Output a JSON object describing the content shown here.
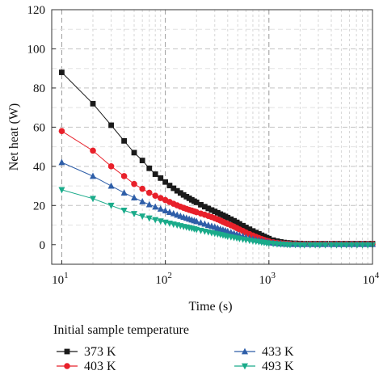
{
  "chart_data": {
    "type": "line",
    "xlabel": "Time (s)",
    "ylabel": "Net heat (W)",
    "xscale": "log",
    "xlim": [
      8,
      10000
    ],
    "ylim": [
      -10,
      120
    ],
    "y_ticks": [
      "0",
      "20",
      "40",
      "60",
      "80",
      "100",
      "120"
    ],
    "x_ticks": [
      {
        "base": "10",
        "exp": "1"
      },
      {
        "base": "10",
        "exp": "2"
      },
      {
        "base": "10",
        "exp": "3"
      },
      {
        "base": "10",
        "exp": "4"
      }
    ],
    "grid": true,
    "legend_title": "Initial sample temperature",
    "legend_position": "bottom",
    "x": [
      10,
      20,
      30,
      40,
      50,
      60,
      70,
      80,
      90,
      100,
      110,
      120,
      130,
      140,
      150,
      160,
      170,
      180,
      190,
      200,
      220,
      240,
      260,
      280,
      300,
      320,
      340,
      360,
      380,
      400,
      430,
      460,
      490,
      520,
      560,
      600,
      650,
      700,
      750,
      800,
      850,
      900,
      950,
      1000,
      1100,
      1200,
      1300,
      1400,
      1500,
      1600,
      1800,
      2000,
      2200,
      2500,
      2800,
      3100,
      3500,
      4000,
      4500,
      5000,
      5600,
      6300,
      7100,
      8000,
      9000,
      10000
    ],
    "series": [
      {
        "name": "373 K",
        "marker": "square",
        "color": "#1a1a1a",
        "values": [
          88,
          72,
          61,
          53,
          47,
          43,
          39,
          36,
          34,
          32,
          30.2,
          28.8,
          27.5,
          26.4,
          25.4,
          24.5,
          23.7,
          22.9,
          22.2,
          21.6,
          20.4,
          19.4,
          18.5,
          17.7,
          17,
          16.3,
          15.6,
          15,
          14.4,
          13.8,
          13,
          12.2,
          11.4,
          10.6,
          9.7,
          8.8,
          7.9,
          7,
          6.2,
          5.5,
          4.8,
          4.2,
          3.6,
          3.1,
          2.3,
          1.8,
          1.4,
          1.1,
          0.9,
          0.8,
          0.7,
          0.6,
          0.5,
          0.5,
          0.5,
          0.5,
          0.5,
          0.5,
          0.5,
          0.5,
          0.5,
          0.5,
          0.5,
          0.5,
          0.5,
          0.5
        ]
      },
      {
        "name": "403 K",
        "marker": "circle",
        "color": "#e8202a",
        "values": [
          58,
          48,
          40,
          35,
          31,
          28.5,
          26.5,
          25,
          23.8,
          22.8,
          21.8,
          20.9,
          20.1,
          19.4,
          18.8,
          18.3,
          17.8,
          17.4,
          17,
          16.6,
          15.9,
          15.3,
          14.7,
          14.1,
          13.5,
          12.9,
          12.3,
          11.7,
          11.1,
          10.6,
          9.9,
          9.2,
          8.5,
          7.8,
          7,
          6.2,
          5.4,
          4.7,
          4,
          3.4,
          2.9,
          2.4,
          2,
          1.7,
          1.2,
          0.9,
          0.7,
          0.6,
          0.5,
          0.4,
          0.4,
          0.3,
          0.3,
          0.3,
          0.3,
          0.3,
          0.3,
          0.3,
          0.3,
          0.3,
          0.3,
          0.3,
          0.3,
          0.3,
          0.3,
          0.3
        ]
      },
      {
        "name": "433 K",
        "marker": "triangle-up",
        "color": "#2e5ea8",
        "values": [
          42,
          35,
          30,
          26.5,
          24,
          22,
          20.5,
          19.3,
          18.3,
          17.4,
          16.6,
          15.9,
          15.2,
          14.6,
          14.1,
          13.6,
          13.1,
          12.7,
          12.3,
          11.9,
          11.2,
          10.6,
          10,
          9.5,
          9,
          8.5,
          8,
          7.6,
          7.2,
          6.8,
          6.3,
          5.8,
          5.3,
          4.8,
          4.3,
          3.8,
          3.3,
          2.9,
          2.5,
          2.2,
          1.9,
          1.6,
          1.4,
          1.2,
          0.9,
          0.7,
          0.5,
          0.4,
          0.3,
          0.2,
          0.2,
          0.2,
          0.2,
          0.2,
          0.2,
          0.2,
          0.2,
          0.2,
          0.2,
          0.2,
          0.2,
          0.2,
          0.2,
          0.2,
          0.2,
          0.2
        ]
      },
      {
        "name": "493 K",
        "marker": "triangle-down",
        "color": "#1aab8a",
        "values": [
          28,
          23.5,
          20,
          17.5,
          15.8,
          14.5,
          13.5,
          12.7,
          12,
          11.4,
          10.9,
          10.4,
          10,
          9.6,
          9.2,
          8.9,
          8.6,
          8.3,
          8,
          7.7,
          7.2,
          6.8,
          6.4,
          6,
          5.7,
          5.4,
          5.1,
          4.8,
          4.5,
          4.2,
          3.9,
          3.6,
          3.3,
          3,
          2.7,
          2.4,
          2.1,
          1.8,
          1.6,
          1.4,
          1.2,
          1,
          0.8,
          0.7,
          0.5,
          0.3,
          0.2,
          0.1,
          0,
          -0.1,
          -0.1,
          -0.2,
          -0.2,
          -0.2,
          -0.2,
          -0.2,
          -0.2,
          -0.2,
          -0.2,
          -0.2,
          -0.2,
          -0.2,
          -0.2,
          -0.2,
          -0.2,
          -0.2
        ]
      }
    ]
  }
}
